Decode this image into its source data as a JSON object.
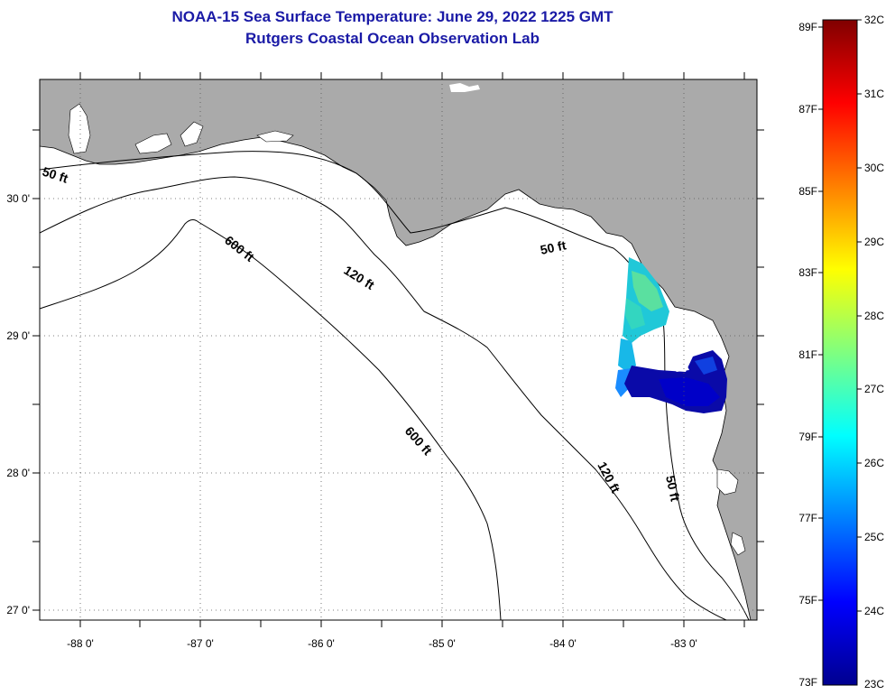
{
  "title": {
    "line1": "NOAA-15 Sea Surface Temperature:  June 29, 2022 1225 GMT",
    "line2": "Rutgers Coastal Ocean Observation Lab"
  },
  "map": {
    "longitude_ticks": [
      "-88 0'",
      "-87 0'",
      "-86 0'",
      "-85 0'",
      "-84 0'",
      "-83 0'"
    ],
    "latitude_ticks": [
      "30 0'",
      "29 0'",
      "28 0'",
      "27 0'"
    ],
    "depth_contour_labels": [
      "50 ft",
      "50 ft",
      "50 ft",
      "120 ft",
      "120 ft",
      "600 ft",
      "600 ft"
    ],
    "land_color": "#aaaaaa",
    "water_color": "#ffffff"
  },
  "colorbar": {
    "fahrenheit_labels": [
      "89F",
      "87F",
      "85F",
      "83F",
      "81F",
      "79F",
      "77F",
      "75F",
      "73F"
    ],
    "celsius_labels": [
      "32C",
      "31C",
      "30C",
      "29C",
      "28C",
      "27C",
      "26C",
      "25C",
      "24C",
      "23C"
    ],
    "colormap": "jet",
    "min_c": 23,
    "max_c": 32
  },
  "sst_patch": {
    "observed_range_c": [
      23,
      27.5
    ]
  }
}
